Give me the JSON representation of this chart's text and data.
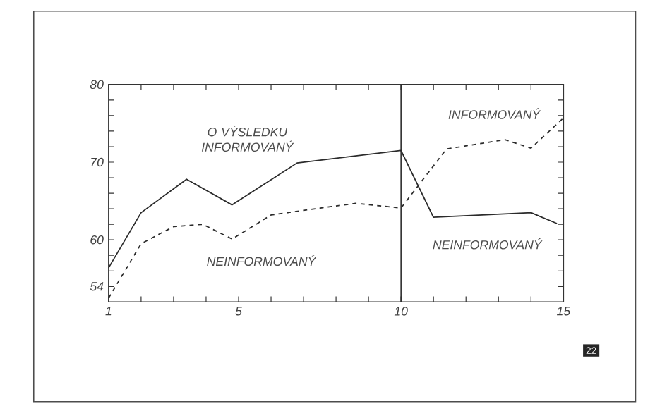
{
  "chart_data": {
    "type": "line",
    "series": [
      {
        "color": "#2b2b2b",
        "line_style": "solid",
        "x": [
          1,
          2,
          3.4,
          4.8,
          6.8,
          10,
          11,
          14,
          14.8
        ],
        "values": [
          56.4,
          63.5,
          67.8,
          64.5,
          69.9,
          71.5,
          62.9,
          63.5,
          62.1
        ]
      },
      {
        "color": "#2b2b2b",
        "line_style": "dashed",
        "x": [
          1,
          2,
          3,
          3.9,
          4.8,
          6,
          7,
          8.6,
          10,
          11.4,
          13.2,
          14,
          15
        ],
        "values": [
          52.5,
          59.5,
          61.7,
          62.0,
          60.1,
          63.2,
          63.8,
          64.7,
          64.1,
          71.7,
          72.9,
          71.8,
          75.7
        ]
      }
    ],
    "xlim": [
      1,
      15
    ],
    "ylim": [
      52,
      80
    ],
    "xticks": [
      1,
      {
        "value": 2,
        "label": null
      },
      {
        "value": 3,
        "label": null
      },
      {
        "value": 4,
        "label": null
      },
      5,
      {
        "value": 6,
        "label": null
      },
      {
        "value": 7,
        "label": null
      },
      {
        "value": 8,
        "label": null
      },
      {
        "value": 9,
        "label": null
      },
      10,
      {
        "value": 11,
        "label": null
      },
      {
        "value": 12,
        "label": null
      },
      {
        "value": 13,
        "label": null
      },
      {
        "value": 14,
        "label": null
      },
      15
    ],
    "yticks": [
      54,
      {
        "value": 56,
        "label": null
      },
      {
        "value": 58,
        "label": null
      },
      60,
      {
        "value": 62,
        "label": null
      },
      {
        "value": 64,
        "label": null
      },
      {
        "value": 66,
        "label": null
      },
      {
        "value": 68,
        "label": null
      },
      70,
      {
        "value": 72,
        "label": null
      },
      {
        "value": 74,
        "label": null
      },
      {
        "value": 76,
        "label": null
      },
      {
        "value": 78,
        "label": null
      },
      80
    ],
    "ref_lines": [
      {
        "axis": "x",
        "value": 10,
        "color": "#2b2b2b"
      }
    ],
    "annotations": [
      "O VÝSLEDKU INFORMOVANÝ",
      "NEINFORMOVANÝ",
      "INFORMOVANÝ",
      "NEINFORMOVANÝ",
      "22"
    ]
  }
}
